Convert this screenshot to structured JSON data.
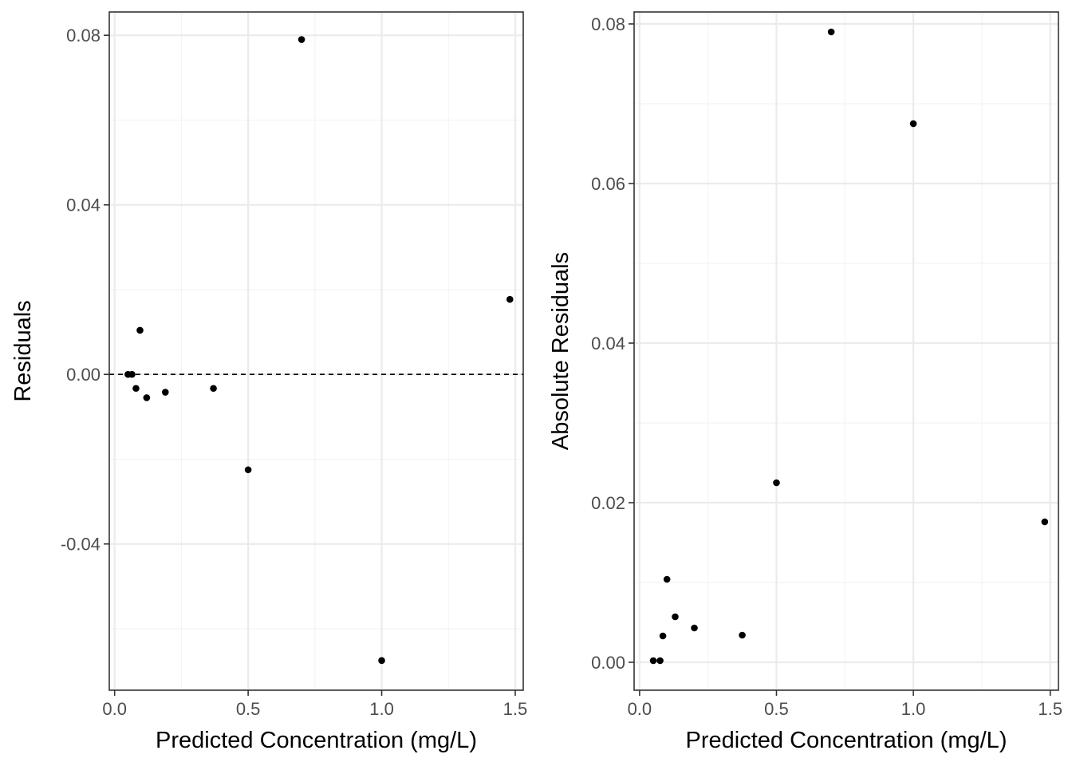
{
  "chart_data": [
    {
      "type": "scatter",
      "panel": "residuals",
      "xlabel": "Predicted Concentration (mg/L)",
      "ylabel": "Residuals",
      "xlim": [
        -0.02,
        1.53
      ],
      "ylim": [
        -0.0745,
        0.0855
      ],
      "x_ticks": [
        0.0,
        0.5,
        1.0,
        1.5
      ],
      "x_tick_labels": [
        "0.0",
        "0.5",
        "1.0",
        "1.5"
      ],
      "y_ticks": [
        -0.04,
        0.0,
        0.04,
        0.08
      ],
      "y_tick_labels": [
        "-0.04",
        "0.00",
        "0.04",
        "0.08"
      ],
      "reference_line": {
        "y": 0,
        "style": "dashed"
      },
      "grid": true,
      "x": [
        0.05,
        0.065,
        0.08,
        0.095,
        0.12,
        0.19,
        0.37,
        0.5,
        0.7,
        1.0,
        1.48
      ],
      "y": [
        0.0,
        0.0,
        -0.0033,
        0.0104,
        -0.0055,
        -0.0042,
        -0.0033,
        -0.0225,
        0.079,
        -0.0675,
        0.0177
      ]
    },
    {
      "type": "scatter",
      "panel": "absolute-residuals",
      "xlabel": "Predicted Concentration (mg/L)",
      "ylabel": "Absolute Residuals",
      "xlim": [
        -0.02,
        1.53
      ],
      "ylim": [
        -0.0035,
        0.0815
      ],
      "x_ticks": [
        0.0,
        0.5,
        1.0,
        1.5
      ],
      "x_tick_labels": [
        "0.0",
        "0.5",
        "1.0",
        "1.5"
      ],
      "y_ticks": [
        0.0,
        0.02,
        0.04,
        0.06,
        0.08
      ],
      "y_tick_labels": [
        "0.00",
        "0.02",
        "0.04",
        "0.06",
        "0.08"
      ],
      "grid": true,
      "x": [
        0.05,
        0.075,
        0.085,
        0.1,
        0.13,
        0.2,
        0.375,
        0.5,
        0.7,
        1.0,
        1.48
      ],
      "y": [
        0.0002,
        0.0002,
        0.0033,
        0.0104,
        0.0057,
        0.0043,
        0.0034,
        0.0225,
        0.079,
        0.0675,
        0.0176
      ]
    }
  ]
}
